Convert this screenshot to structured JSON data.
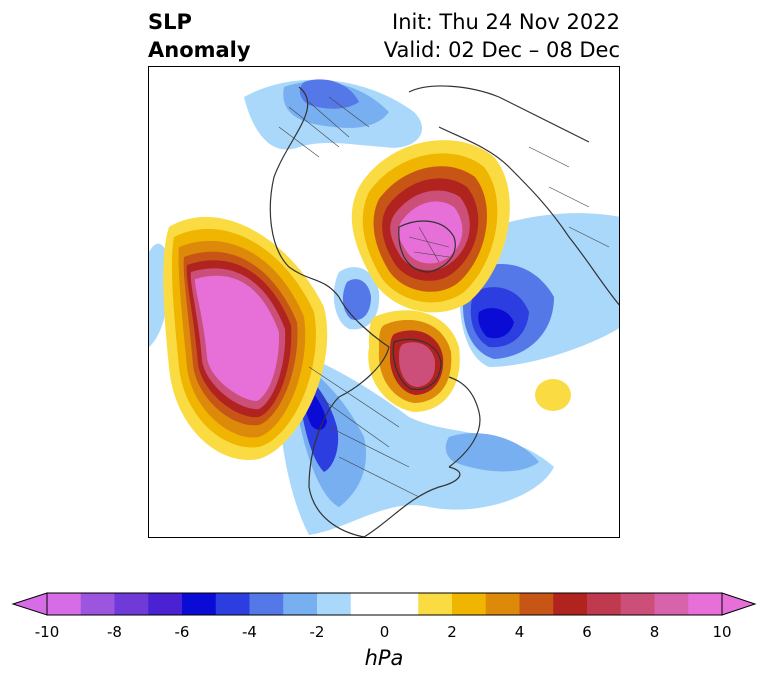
{
  "title": {
    "left_line1": "SLP",
    "left_line2": "Anomaly",
    "right_line1": "Init: Thu 24 Nov 2022",
    "right_line2": "Valid: 02 Dec – 08 Dec"
  },
  "colorbar": {
    "unit": "hPa",
    "ticks": [
      "-10",
      "-8",
      "-6",
      "-4",
      "-2",
      "0",
      "2",
      "4",
      "6",
      "8",
      "10"
    ],
    "range": [
      -10,
      10
    ],
    "step": 1,
    "extend": "both",
    "colors": [
      "#d66de6",
      "#9b55df",
      "#6f3ad8",
      "#4a22d4",
      "#0b0bd6",
      "#2c3edf",
      "#5478e8",
      "#78aff0",
      "#a9d8fb",
      "#ffffff",
      "#ffffff",
      "#fadc42",
      "#f0b500",
      "#dd8a0a",
      "#c75616",
      "#b0231f",
      "#c03a4f",
      "#cb4f79",
      "#d863ad",
      "#e670d8"
    ]
  },
  "map": {
    "projection": "north-polar-stereographic",
    "field": "sea-level pressure anomaly"
  }
}
